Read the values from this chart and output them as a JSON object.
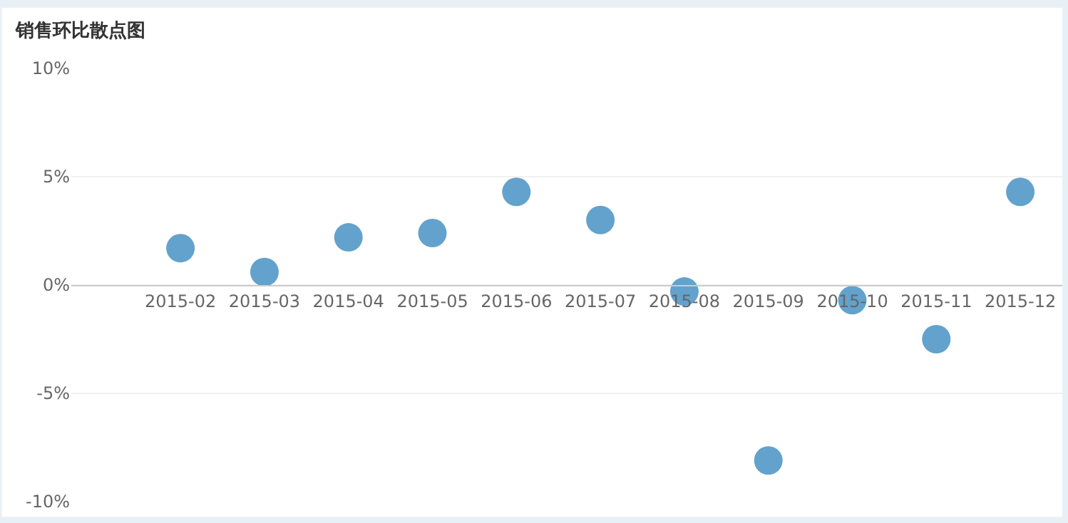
{
  "chart_data": {
    "type": "scatter",
    "title": "销售环比散点图",
    "categories": [
      "2015-02",
      "2015-03",
      "2015-04",
      "2015-05",
      "2015-06",
      "2015-07",
      "2015-08",
      "2015-09",
      "2015-10",
      "2015-11",
      "2015-12"
    ],
    "series": [
      {
        "color": "#5b9dc9",
        "values": [
          1.7,
          0.6,
          2.2,
          2.4,
          4.3,
          3.0,
          -0.3,
          -8.1,
          -0.7,
          -2.5,
          4.3
        ]
      }
    ],
    "ylim": [
      -10,
      10
    ],
    "yticks": [
      {
        "value": -10,
        "label": "-10%"
      },
      {
        "value": -5,
        "label": "-5%"
      },
      {
        "value": 0,
        "label": "0%"
      },
      {
        "value": 5,
        "label": "5%"
      },
      {
        "value": 10,
        "label": "10%"
      }
    ],
    "grid": "y",
    "marker": "circle"
  }
}
